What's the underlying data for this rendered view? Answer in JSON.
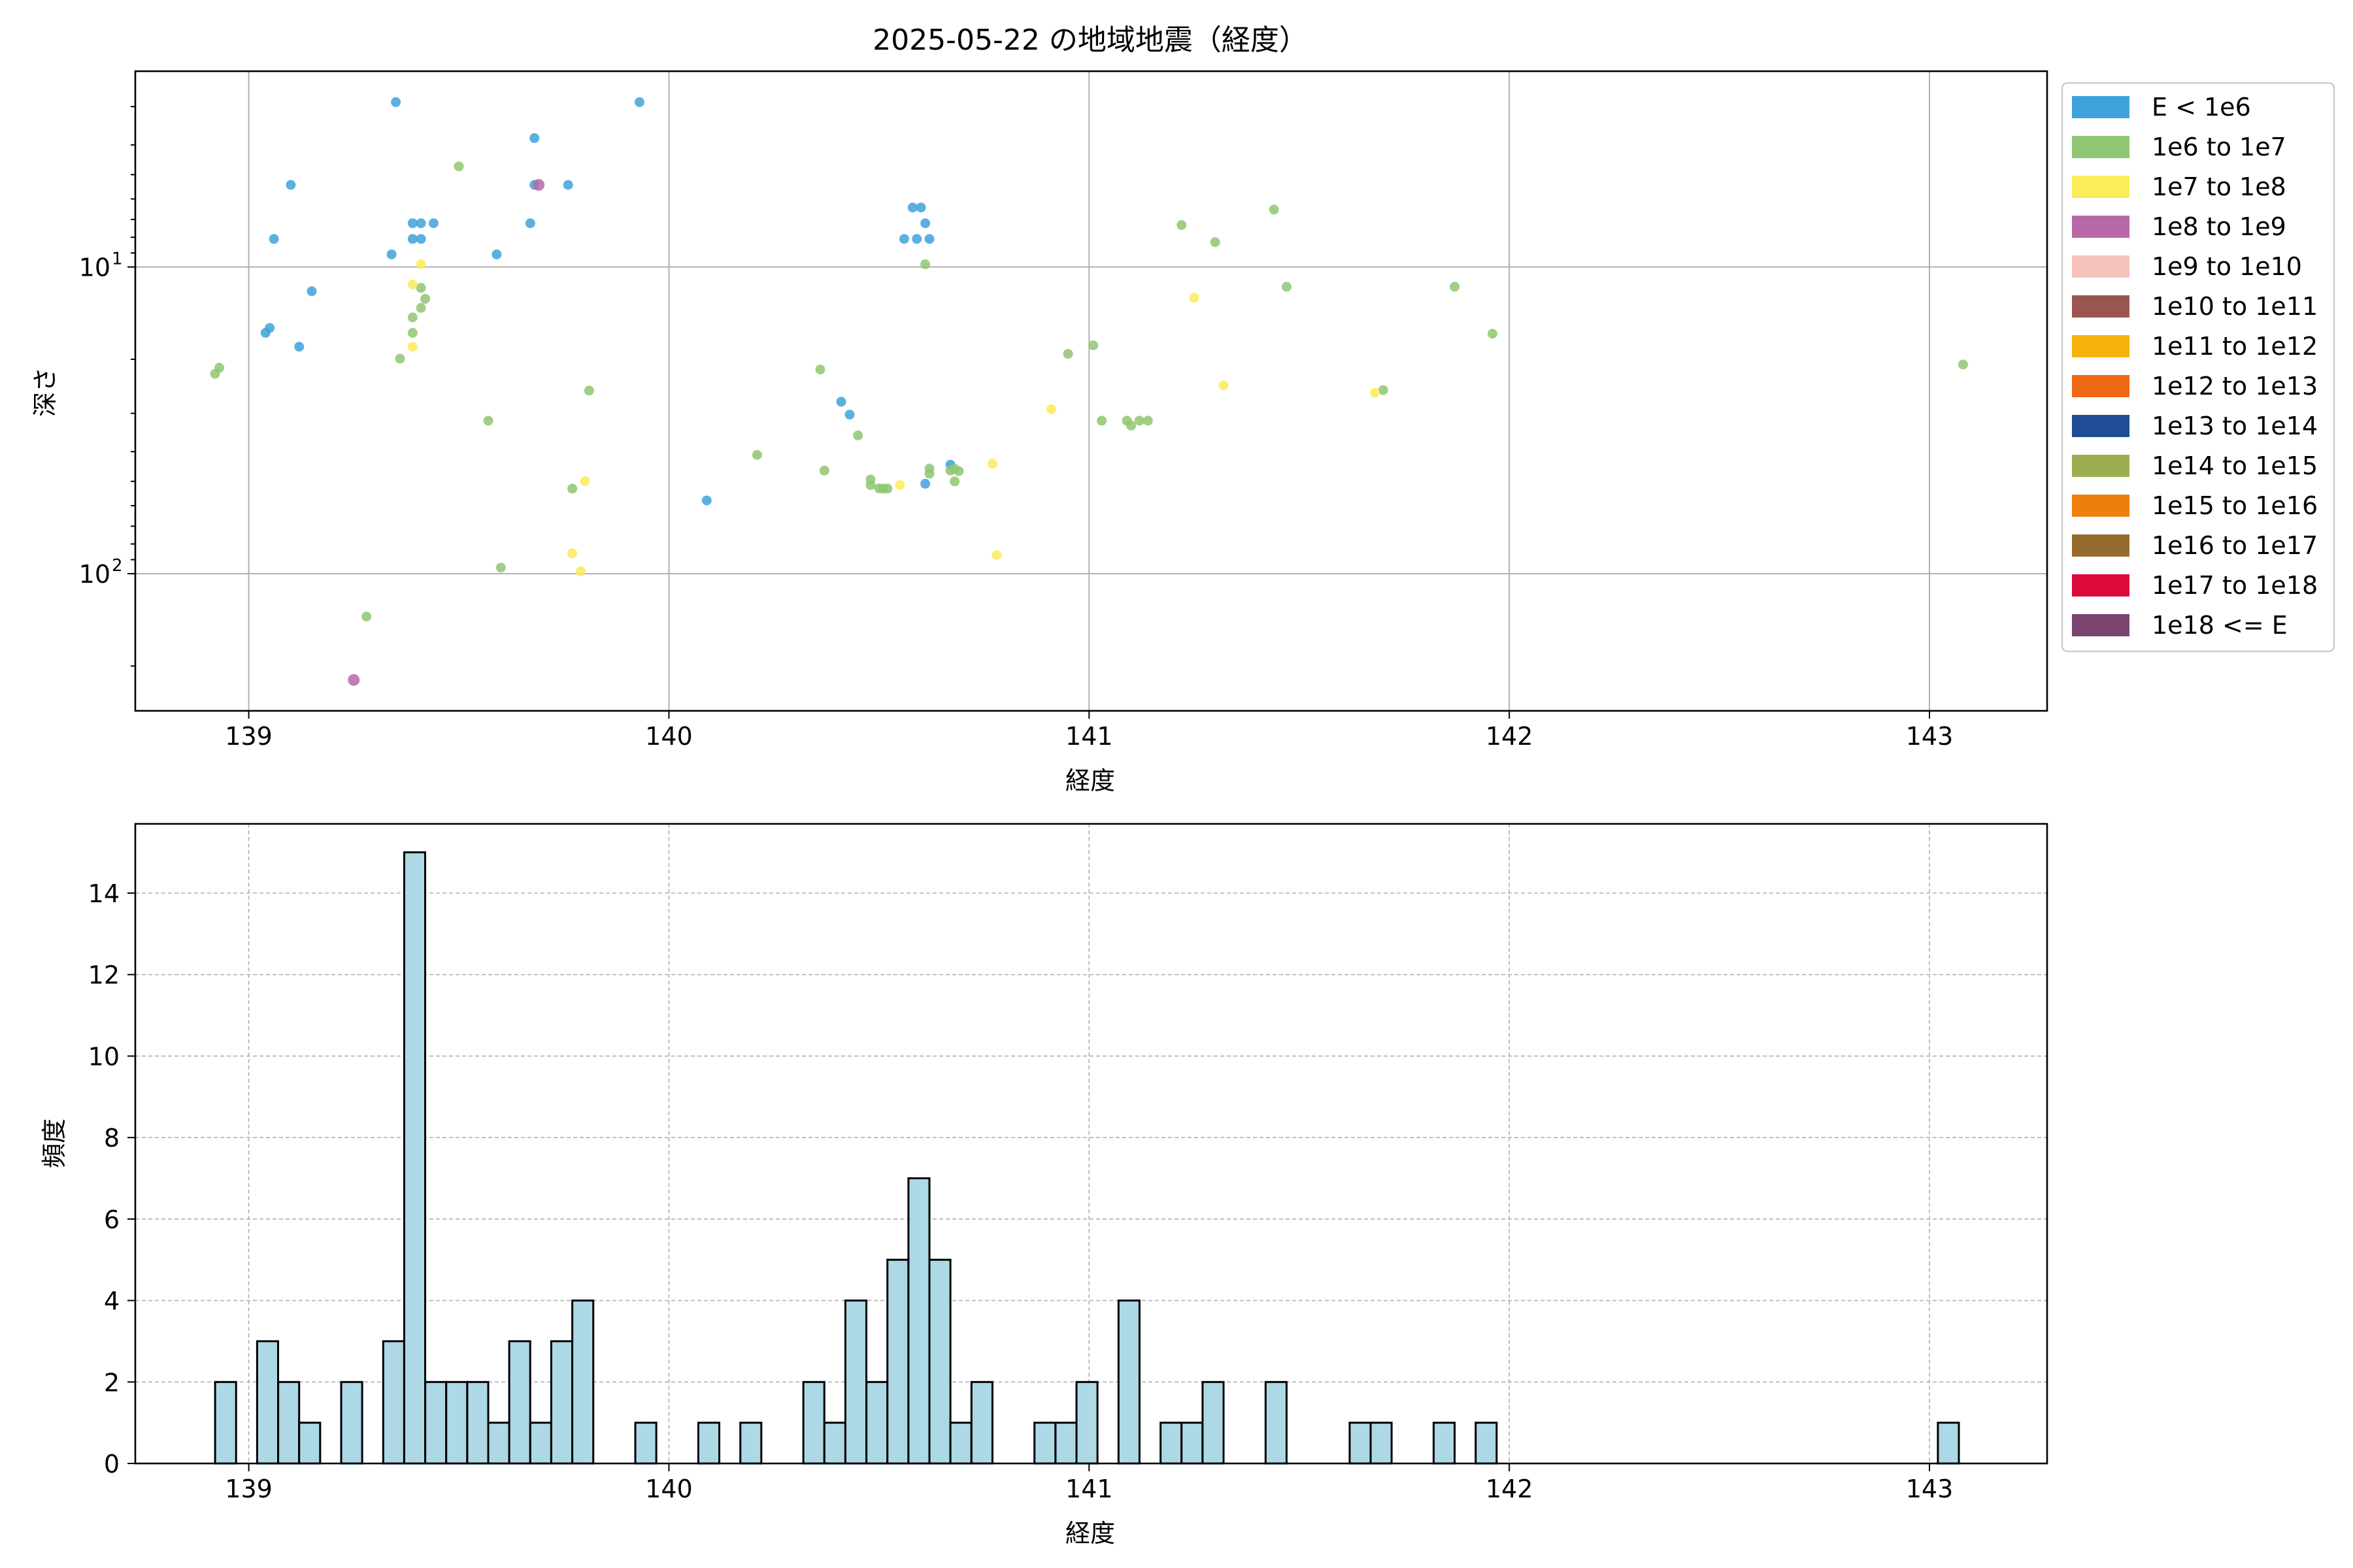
{
  "figure": {
    "title": "2025-05-22 の地域地震（経度）"
  },
  "chart_data": [
    {
      "type": "scatter",
      "title": "2025-05-22 の地域地震（経度）",
      "xlabel": "経度",
      "ylabel": "深さ",
      "xlim": [
        138.73,
        143.28
      ],
      "ylim": [
        280,
        2.3
      ],
      "y_scale": "log",
      "y_inverted": true,
      "grid": true,
      "legend_position": "outside-right",
      "x_ticks": [
        "139",
        "140",
        "141",
        "142",
        "143"
      ],
      "y_ticks": [
        {
          "value": 10,
          "label": "10",
          "exp": "1"
        },
        {
          "value": 100,
          "label": "10",
          "exp": "2"
        }
      ],
      "legend": [
        {
          "label": "E < 1e6",
          "color": "#3fa2dc"
        },
        {
          "label": "1e6 to 1e7",
          "color": "#8fc671"
        },
        {
          "label": "1e7 to 1e8",
          "color": "#fceb5a"
        },
        {
          "label": "1e8 to 1e9",
          "color": "#b868a8"
        },
        {
          "label": "1e9 to 1e10",
          "color": "#f5c2bb"
        },
        {
          "label": "1e10 to 1e11",
          "color": "#9b5550"
        },
        {
          "label": "1e11 to 1e12",
          "color": "#f7b10b"
        },
        {
          "label": "1e12 to 1e13",
          "color": "#ee6712"
        },
        {
          "label": "1e13 to 1e14",
          "color": "#1f4d95"
        },
        {
          "label": "1e14 to 1e15",
          "color": "#9cae52"
        },
        {
          "label": "1e15 to 1e16",
          "color": "#ee7f0e"
        },
        {
          "label": "1e16 to 1e17",
          "color": "#956c2e"
        },
        {
          "label": "1e17 to 1e18",
          "color": "#dc0a3a"
        },
        {
          "label": "1e18 <= E",
          "color": "#7b4370"
        }
      ],
      "series": [
        {
          "name": "E < 1e6",
          "color": "#3fa2dc",
          "points": [
            [
              139.35,
              2.9
            ],
            [
              139.93,
              2.9
            ],
            [
              139.68,
              3.8
            ],
            [
              139.1,
              5.4
            ],
            [
              139.68,
              5.4
            ],
            [
              139.76,
              5.4
            ],
            [
              139.39,
              7.2
            ],
            [
              139.41,
              7.2
            ],
            [
              139.44,
              7.2
            ],
            [
              139.67,
              7.2
            ],
            [
              139.06,
              8.1
            ],
            [
              139.39,
              8.1
            ],
            [
              139.41,
              8.1
            ],
            [
              139.34,
              9.1
            ],
            [
              139.59,
              9.1
            ],
            [
              139.15,
              12.0
            ],
            [
              139.05,
              15.8
            ],
            [
              139.04,
              16.4
            ],
            [
              139.12,
              18.2
            ],
            [
              140.41,
              27.5
            ],
            [
              140.43,
              30.3
            ],
            [
              140.09,
              57.7
            ],
            [
              140.58,
              6.4
            ],
            [
              140.6,
              6.4
            ],
            [
              140.61,
              7.2
            ],
            [
              140.56,
              8.1
            ],
            [
              140.59,
              8.1
            ],
            [
              140.62,
              8.1
            ],
            [
              140.61,
              50.9
            ],
            [
              140.67,
              44.1
            ]
          ]
        },
        {
          "name": "1e6 to 1e7",
          "color": "#8fc671",
          "points": [
            [
              138.92,
              22.3
            ],
            [
              138.93,
              21.3
            ],
            [
              139.36,
              19.9
            ],
            [
              139.39,
              16.4
            ],
            [
              139.39,
              14.6
            ],
            [
              139.41,
              13.6
            ],
            [
              139.42,
              12.7
            ],
            [
              139.41,
              11.7
            ],
            [
              139.5,
              4.7
            ],
            [
              139.57,
              31.7
            ],
            [
              139.6,
              95.5
            ],
            [
              139.28,
              138
            ],
            [
              139.81,
              25.3
            ],
            [
              139.77,
              52.8
            ],
            [
              140.21,
              41.0
            ],
            [
              140.36,
              21.6
            ],
            [
              140.37,
              46.1
            ],
            [
              140.45,
              35.4
            ],
            [
              140.48,
              49.3
            ],
            [
              140.48,
              51.4
            ],
            [
              140.5,
              52.7
            ],
            [
              140.51,
              52.8
            ],
            [
              140.52,
              52.8
            ],
            [
              140.62,
              45.4
            ],
            [
              140.62,
              47.2
            ],
            [
              140.67,
              46.1
            ],
            [
              140.68,
              45.5
            ],
            [
              140.69,
              46.3
            ],
            [
              140.68,
              50.0
            ],
            [
              140.61,
              9.8
            ],
            [
              140.95,
              19.2
            ],
            [
              141.01,
              18.0
            ],
            [
              141.03,
              31.7
            ],
            [
              141.09,
              31.7
            ],
            [
              141.1,
              32.9
            ],
            [
              141.12,
              31.7
            ],
            [
              141.14,
              31.7
            ],
            [
              141.22,
              7.3
            ],
            [
              141.3,
              8.3
            ],
            [
              141.44,
              6.5
            ],
            [
              141.47,
              11.6
            ],
            [
              141.7,
              25.2
            ],
            [
              141.87,
              11.6
            ],
            [
              141.96,
              16.5
            ],
            [
              143.08,
              20.8
            ]
          ]
        },
        {
          "name": "1e7 to 1e8",
          "color": "#fceb5a",
          "points": [
            [
              139.39,
              11.4
            ],
            [
              139.41,
              9.8
            ],
            [
              139.39,
              18.2
            ],
            [
              139.8,
              49.9
            ],
            [
              139.77,
              85.8
            ],
            [
              139.79,
              98.2
            ],
            [
              140.55,
              51.4
            ],
            [
              140.77,
              43.8
            ],
            [
              140.78,
              86.9
            ],
            [
              140.91,
              29.1
            ],
            [
              141.25,
              12.6
            ],
            [
              141.32,
              24.3
            ],
            [
              141.68,
              25.7
            ]
          ]
        },
        {
          "name": "1e8 to 1e9",
          "color": "#b868a8",
          "points": [
            [
              139.69,
              5.4
            ],
            [
              139.25,
              222
            ]
          ]
        }
      ]
    },
    {
      "type": "bar",
      "subtype": "histogram",
      "xlabel": "経度",
      "ylabel": "頻度",
      "xlim": [
        138.73,
        143.28
      ],
      "ylim": [
        0,
        15.7
      ],
      "grid": true,
      "bar_color": "#add8e6",
      "bin_width": 0.05,
      "x_ticks": [
        "139",
        "140",
        "141",
        "142",
        "143"
      ],
      "y_ticks": [
        "0",
        "2",
        "4",
        "6",
        "8",
        "10",
        "12",
        "14"
      ],
      "bins": [
        {
          "x0": 138.92,
          "count": 2
        },
        {
          "x0": 139.02,
          "count": 3
        },
        {
          "x0": 139.07,
          "count": 2
        },
        {
          "x0": 139.12,
          "count": 1
        },
        {
          "x0": 139.22,
          "count": 2
        },
        {
          "x0": 139.32,
          "count": 3
        },
        {
          "x0": 139.37,
          "count": 15
        },
        {
          "x0": 139.42,
          "count": 2
        },
        {
          "x0": 139.47,
          "count": 2
        },
        {
          "x0": 139.52,
          "count": 2
        },
        {
          "x0": 139.57,
          "count": 1
        },
        {
          "x0": 139.62,
          "count": 3
        },
        {
          "x0": 139.67,
          "count": 1
        },
        {
          "x0": 139.72,
          "count": 3
        },
        {
          "x0": 139.77,
          "count": 4
        },
        {
          "x0": 139.92,
          "count": 1
        },
        {
          "x0": 140.07,
          "count": 1
        },
        {
          "x0": 140.17,
          "count": 1
        },
        {
          "x0": 140.32,
          "count": 2
        },
        {
          "x0": 140.37,
          "count": 1
        },
        {
          "x0": 140.42,
          "count": 4
        },
        {
          "x0": 140.47,
          "count": 2
        },
        {
          "x0": 140.52,
          "count": 5
        },
        {
          "x0": 140.57,
          "count": 7
        },
        {
          "x0": 140.62,
          "count": 5
        },
        {
          "x0": 140.67,
          "count": 1
        },
        {
          "x0": 140.72,
          "count": 2
        },
        {
          "x0": 140.87,
          "count": 1
        },
        {
          "x0": 140.92,
          "count": 1
        },
        {
          "x0": 140.97,
          "count": 2
        },
        {
          "x0": 141.07,
          "count": 4
        },
        {
          "x0": 141.17,
          "count": 1
        },
        {
          "x0": 141.22,
          "count": 1
        },
        {
          "x0": 141.27,
          "count": 2
        },
        {
          "x0": 141.42,
          "count": 2
        },
        {
          "x0": 141.62,
          "count": 1
        },
        {
          "x0": 141.67,
          "count": 1
        },
        {
          "x0": 141.82,
          "count": 1
        },
        {
          "x0": 141.92,
          "count": 1
        },
        {
          "x0": 143.02,
          "count": 1
        }
      ]
    }
  ]
}
